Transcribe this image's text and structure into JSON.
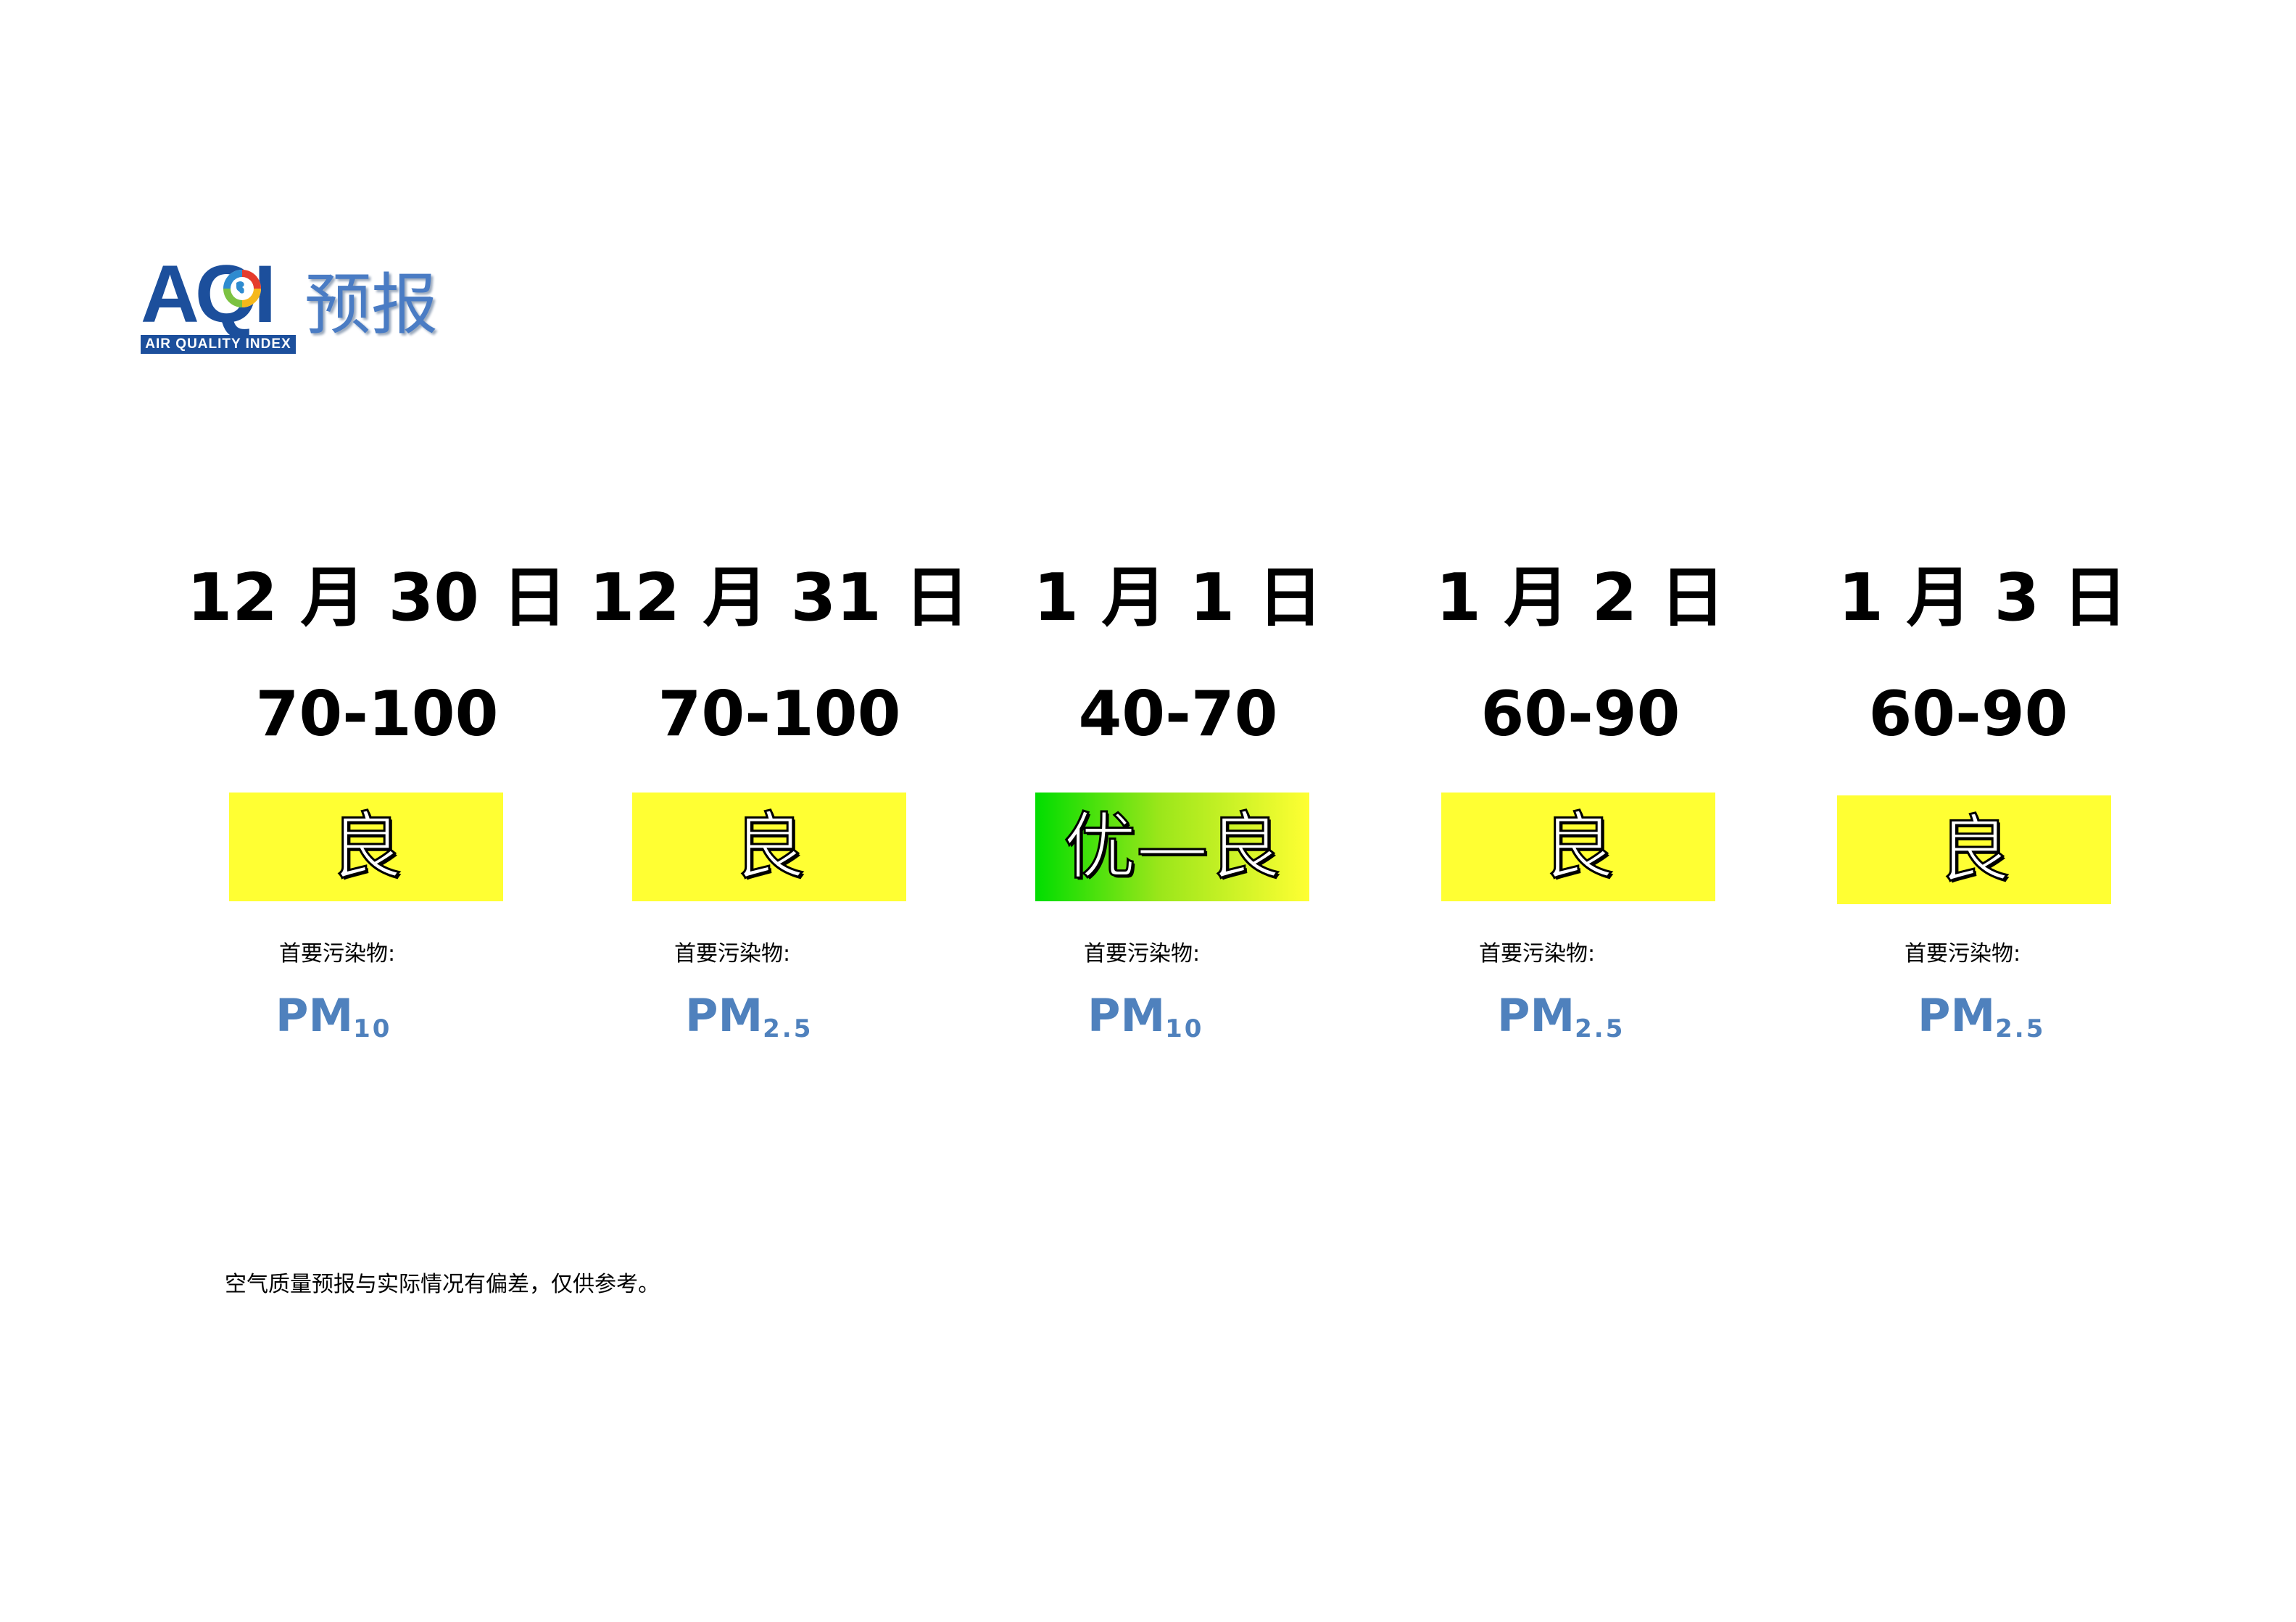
{
  "logo": {
    "aqi": "AQI",
    "subtitle": "AIR QUALITY INDEX",
    "title": "预报",
    "brand_color": "#1c4f9c"
  },
  "forecast": [
    {
      "date": "12 月 30 日",
      "range": "70-100",
      "level": "良",
      "pollutant_label": "首要污染物:",
      "pollutant": "PM",
      "pollutant_sub": "10",
      "level_color": "#ffff33"
    },
    {
      "date": "12 月 31 日",
      "range": "70-100",
      "level": "良",
      "pollutant_label": "首要污染物:",
      "pollutant": "PM",
      "pollutant_sub": "2.5",
      "level_color": "#ffff33"
    },
    {
      "date": "1 月 1 日",
      "range": "40-70",
      "level": "优—良",
      "pollutant_label": "首要污染物:",
      "pollutant": "PM",
      "pollutant_sub": "10",
      "level_color": "#00dd00 → #ffff33"
    },
    {
      "date": "1 月 2 日",
      "range": "60-90",
      "level": "良",
      "pollutant_label": "首要污染物:",
      "pollutant": "PM",
      "pollutant_sub": "2.5",
      "level_color": "#ffff33"
    },
    {
      "date": "1 月 3 日",
      "range": "60-90",
      "level": "良",
      "pollutant_label": "首要污染物:",
      "pollutant": "PM",
      "pollutant_sub": "2.5",
      "level_color": "#ffff33"
    }
  ],
  "note": "空气质量预报与实际情况有偏差，仅供参考。"
}
